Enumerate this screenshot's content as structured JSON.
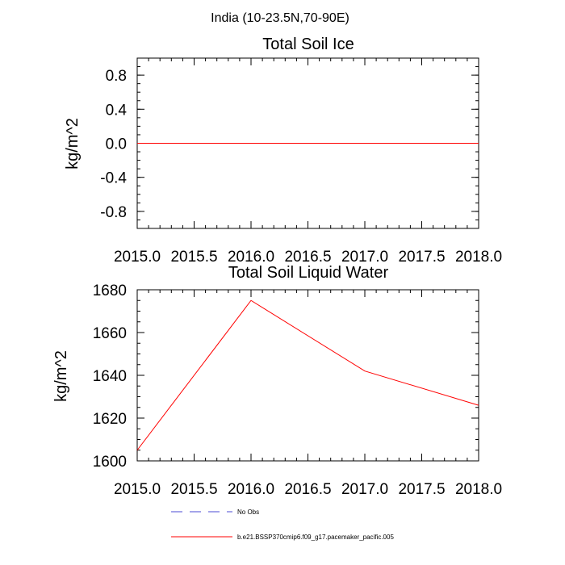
{
  "page_title": "India (10-23.5N,70-90E)",
  "chart_data": [
    {
      "type": "line",
      "title": "Total Soil Ice",
      "xlabel": "",
      "ylabel": "kg/m^2",
      "xlim": [
        2015.0,
        2018.0
      ],
      "ylim": [
        -1.0,
        1.0
      ],
      "x_ticks": [
        2015.0,
        2015.5,
        2016.0,
        2016.5,
        2017.0,
        2017.5,
        2018.0
      ],
      "x_tick_labels": [
        "2015.0",
        "2015.5",
        "2016.0",
        "2016.5",
        "2017.0",
        "2017.5",
        "2018.0"
      ],
      "y_ticks": [
        0.8,
        0.4,
        0.0,
        -0.4,
        -0.8
      ],
      "y_tick_labels": [
        "0.8",
        "0.4",
        "0.0",
        "-0.4",
        "-0.8"
      ],
      "grid": false,
      "series": [
        {
          "name": "b.e21.BSSP370cmip6.f09_g17.pacemaker_pacific.005",
          "color": "#ff0000",
          "x": [
            2015.0,
            2016.0,
            2017.0,
            2018.0
          ],
          "y": [
            0.0,
            0.0,
            0.0,
            0.0
          ]
        }
      ]
    },
    {
      "type": "line",
      "title": "Total Soil Liquid Water",
      "xlabel": "",
      "ylabel": "kg/m^2",
      "xlim": [
        2015.0,
        2018.0
      ],
      "ylim": [
        1600,
        1680
      ],
      "x_ticks": [
        2015.0,
        2015.5,
        2016.0,
        2016.5,
        2017.0,
        2017.5,
        2018.0
      ],
      "x_tick_labels": [
        "2015.0",
        "2015.5",
        "2016.0",
        "2016.5",
        "2017.0",
        "2017.5",
        "2018.0"
      ],
      "y_ticks": [
        1680,
        1660,
        1640,
        1620,
        1600
      ],
      "y_tick_labels": [
        "1680",
        "1660",
        "1640",
        "1620",
        "1600"
      ],
      "grid": false,
      "series": [
        {
          "name": "b.e21.BSSP370cmip6.f09_g17.pacemaker_pacific.005",
          "color": "#ff0000",
          "x": [
            2015.0,
            2016.0,
            2017.0,
            2018.0
          ],
          "y": [
            1605,
            1675,
            1642,
            1626
          ]
        }
      ]
    }
  ],
  "legend": {
    "placement": "bottom",
    "items": [
      {
        "label": "No Obs",
        "color": "#4b4bd6",
        "style": "dashed"
      },
      {
        "label": "b.e21.BSSP370cmip6.f09_g17.pacemaker_pacific.005",
        "color": "#ff0000",
        "style": "solid"
      }
    ]
  }
}
